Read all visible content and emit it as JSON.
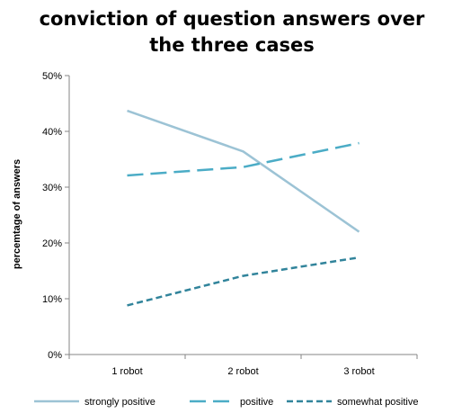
{
  "chart_data": {
    "type": "line",
    "title_lines": [
      "conviction of question answers over",
      "the three cases"
    ],
    "xlabel": "",
    "ylabel": "percemtage of answers",
    "categories": [
      "1 robot",
      "2 robot",
      "3 robot"
    ],
    "ylim": [
      0,
      50
    ],
    "yticks": [
      {
        "value": 0,
        "label": "0%"
      },
      {
        "value": 10,
        "label": "10%"
      },
      {
        "value": 20,
        "label": "20%"
      },
      {
        "value": 30,
        "label": "30%"
      },
      {
        "value": 40,
        "label": "40%"
      },
      {
        "value": 50,
        "label": "50%"
      }
    ],
    "grid": false,
    "legend": "bottom",
    "series": [
      {
        "name": "strongly positive",
        "values": [
          43.7,
          36.4,
          22.0
        ],
        "color": "#9cc3d5",
        "dash": "solid"
      },
      {
        "name": "positive",
        "values": [
          32.1,
          33.6,
          37.9
        ],
        "color": "#4bacc6",
        "dash": "long-dash"
      },
      {
        "name": "somewhat positive",
        "values": [
          8.8,
          14.1,
          17.4
        ],
        "color": "#31849b",
        "dash": "short-dash"
      }
    ]
  }
}
